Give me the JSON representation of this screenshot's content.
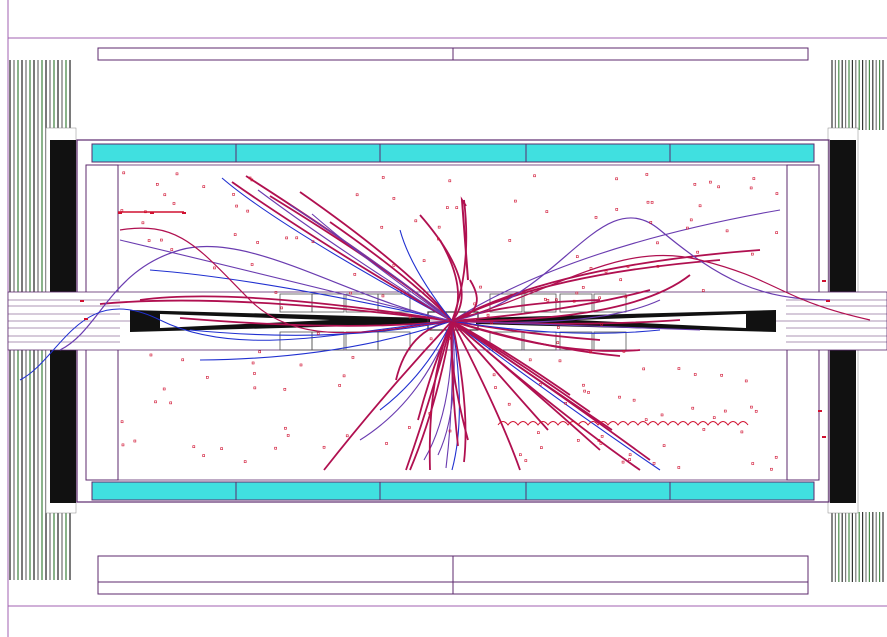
{
  "title": "",
  "colors": {
    "outline": "#5c2a6e",
    "detector_fill": "#40e0e0",
    "iron": "#111111",
    "hit": "#d01030",
    "track_primary": "#b01050",
    "track_secondary": "#6a3cb0",
    "track_blue": "#2030d0"
  },
  "detector_parts": {
    "outer_frame": "outer-frame",
    "calorimeter_barrel": "calorimeter-barrel",
    "muon_endcaps": "muon-endcaps",
    "beam_pipe": "beam-pipe",
    "inner_tracker": "inner-tracker",
    "forward_cones": "forward-cones"
  },
  "event": {
    "track_count_approx": 60,
    "vertex_label": ""
  }
}
